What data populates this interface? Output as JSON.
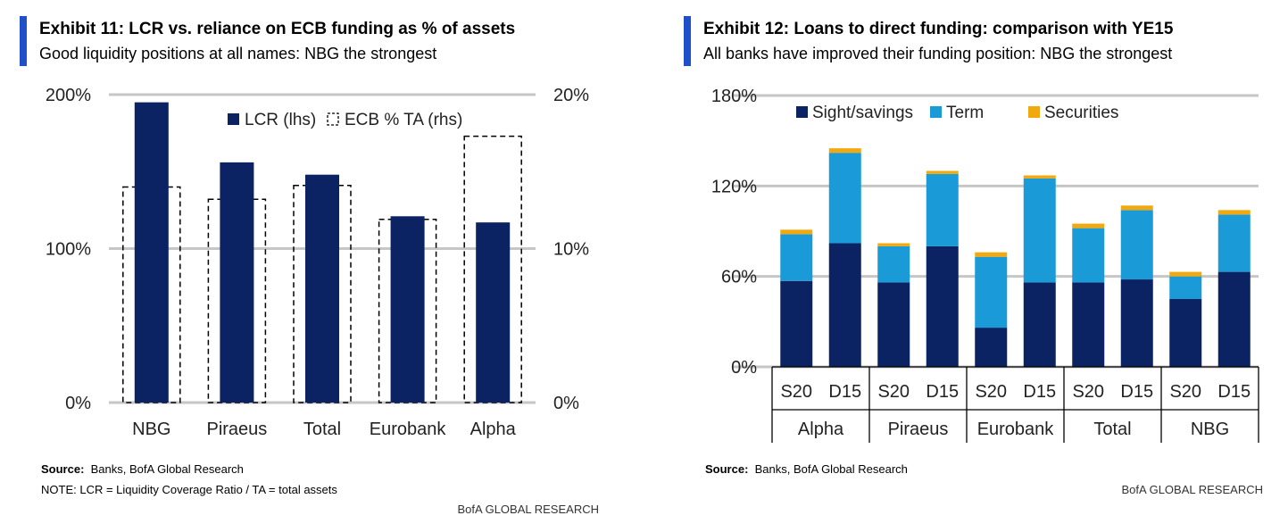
{
  "colors": {
    "accent": "#1f4fc9",
    "navy": "#0b2263",
    "term": "#1a9bd7",
    "securities": "#f2a90f",
    "grid": "#c6c6c6"
  },
  "ex11": {
    "title": "Exhibit 11: LCR vs. reliance on ECB funding as % of assets",
    "subtitle": "Good liquidity positions at all names: NBG the strongest",
    "source_label": "Source:",
    "source_text": "Banks, BofA Global Research",
    "note": "NOTE: LCR = Liquidity Coverage Ratio / TA = total assets",
    "brand": "BofA GLOBAL RESEARCH"
  },
  "ex12": {
    "title": "Exhibit 12: Loans to direct funding: comparison with YE15",
    "subtitle": "All banks have improved their funding position: NBG the strongest",
    "source_label": "Source:",
    "source_text": "Banks, BofA Global Research",
    "brand": "BofA GLOBAL RESEARCH"
  },
  "chart_data": [
    {
      "type": "bar",
      "title": "Exhibit 11: LCR vs. reliance on ECB funding as % of assets",
      "categories": [
        "NBG",
        "Piraeus",
        "Total",
        "Eurobank",
        "Alpha"
      ],
      "series": [
        {
          "name": "LCR (lhs)",
          "axis": "left",
          "style": "filled",
          "values": [
            195,
            156,
            148,
            121,
            117
          ]
        },
        {
          "name": "ECB % TA (rhs)",
          "axis": "right",
          "style": "dashed-outline",
          "values": [
            14.0,
            13.2,
            14.1,
            11.9,
            17.3
          ]
        }
      ],
      "y_left": {
        "ticks": [
          "0%",
          "100%",
          "200%"
        ],
        "ylim": [
          0,
          200
        ]
      },
      "y_right": {
        "ticks": [
          "0%",
          "10%",
          "20%"
        ],
        "ylim": [
          0,
          20
        ]
      },
      "legend": {
        "position": "top-center",
        "items": [
          "LCR (lhs)",
          "ECB % TA (rhs)"
        ]
      },
      "grid": true
    },
    {
      "type": "bar",
      "stacked": true,
      "title": "Exhibit 12: Loans to direct funding: comparison with YE15",
      "categories": [
        "S20",
        "D15",
        "S20",
        "D15",
        "S20",
        "D15",
        "S20",
        "D15",
        "S20",
        "D15"
      ],
      "groups": [
        "Alpha",
        "Piraeus",
        "Eurobank",
        "Total",
        "NBG"
      ],
      "series": [
        {
          "name": "Sight/savings",
          "values": [
            57,
            82,
            56,
            80,
            26,
            56,
            56,
            58,
            45,
            63
          ]
        },
        {
          "name": "Term",
          "values": [
            31,
            60,
            24,
            48,
            47,
            69,
            36,
            46,
            15,
            38
          ]
        },
        {
          "name": "Securities",
          "values": [
            3,
            3,
            2,
            2,
            3,
            2,
            3,
            3,
            3,
            3
          ]
        }
      ],
      "y": {
        "ticks": [
          "0%",
          "60%",
          "120%",
          "180%"
        ],
        "ylim": [
          0,
          180
        ]
      },
      "legend": {
        "position": "top-left",
        "items": [
          "Sight/savings",
          "Term",
          "Securities"
        ]
      },
      "grid": true
    }
  ]
}
